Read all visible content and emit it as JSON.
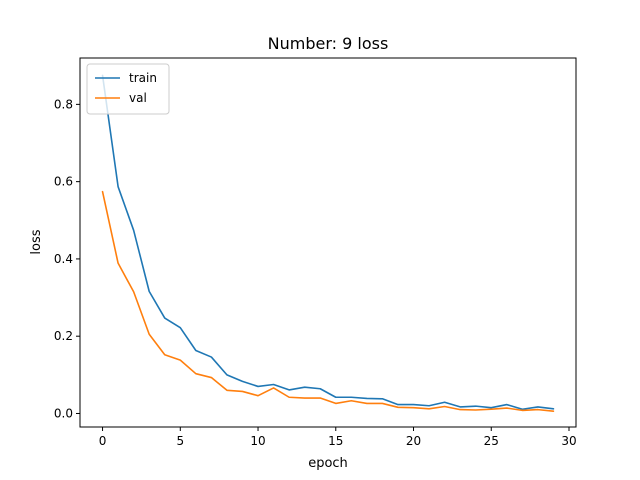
{
  "chart_data": {
    "type": "line",
    "title": "Number: 9 loss",
    "xlabel": "epoch",
    "ylabel": "loss",
    "xlim": [
      -1.45,
      30.45
    ],
    "ylim": [
      -0.035,
      0.92
    ],
    "xticks": [
      0,
      5,
      10,
      15,
      20,
      25,
      30
    ],
    "yticks": [
      0.0,
      0.2,
      0.4,
      0.6,
      0.8
    ],
    "ytick_labels": [
      "0.0",
      "0.2",
      "0.4",
      "0.6",
      "0.8"
    ],
    "legend_position": "top-left",
    "grid": false,
    "x": [
      0,
      1,
      2,
      3,
      4,
      5,
      6,
      7,
      8,
      9,
      10,
      11,
      12,
      13,
      14,
      15,
      16,
      17,
      18,
      19,
      20,
      21,
      22,
      23,
      24,
      25,
      26,
      27,
      28,
      29
    ],
    "series": [
      {
        "name": "train",
        "color": "#1f77b4",
        "values": [
          0.875,
          0.587,
          0.474,
          0.316,
          0.247,
          0.222,
          0.163,
          0.146,
          0.1,
          0.083,
          0.07,
          0.075,
          0.061,
          0.068,
          0.064,
          0.042,
          0.042,
          0.039,
          0.038,
          0.023,
          0.023,
          0.02,
          0.029,
          0.017,
          0.019,
          0.015,
          0.023,
          0.011,
          0.017,
          0.012
        ]
      },
      {
        "name": "val",
        "color": "#ff7f0e",
        "values": [
          0.574,
          0.389,
          0.315,
          0.205,
          0.152,
          0.138,
          0.103,
          0.093,
          0.06,
          0.057,
          0.046,
          0.066,
          0.042,
          0.04,
          0.04,
          0.026,
          0.033,
          0.026,
          0.026,
          0.016,
          0.015,
          0.012,
          0.018,
          0.01,
          0.009,
          0.011,
          0.014,
          0.008,
          0.01,
          0.006
        ]
      }
    ]
  }
}
